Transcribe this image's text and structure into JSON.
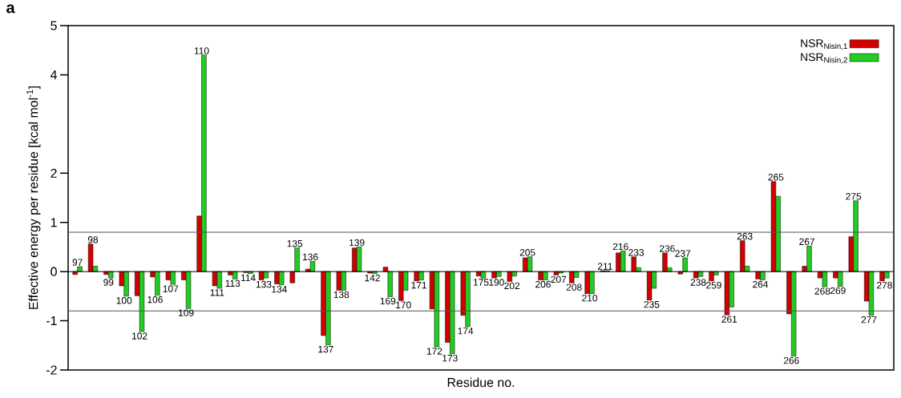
{
  "chart_data": {
    "type": "bar",
    "title": "a",
    "xlabel": "Residue no.",
    "ylabel": "Effective energy per residue [kcal mol$^{-1}$]",
    "categories": [
      "97",
      "98",
      "99",
      "100",
      "102",
      "106",
      "107",
      "109",
      "110",
      "111",
      "113",
      "114",
      "133",
      "134",
      "135",
      "136",
      "137",
      "138",
      "139",
      "142",
      "169",
      "170",
      "171",
      "172",
      "173",
      "174",
      "175",
      "190",
      "202",
      "205",
      "206",
      "207",
      "208",
      "210",
      "211",
      "216",
      "233",
      "235",
      "236",
      "237",
      "238",
      "259",
      "261",
      "263",
      "264",
      "265",
      "266",
      "267",
      "268",
      "269",
      "275",
      "277",
      "278"
    ],
    "series": [
      {
        "name": "NSR$_{Nisin,1}$",
        "color": "#d40000",
        "values": [
          -0.06,
          0.56,
          -0.06,
          -0.29,
          -0.49,
          -0.11,
          -0.17,
          -0.17,
          1.13,
          -0.29,
          -0.07,
          -0.02,
          -0.17,
          -0.25,
          -0.23,
          0.05,
          -1.3,
          -0.38,
          0.48,
          -0.03,
          0.09,
          -0.59,
          -0.19,
          -0.76,
          -1.44,
          -0.89,
          -0.09,
          -0.13,
          -0.2,
          0.28,
          -0.17,
          -0.07,
          -0.23,
          -0.45,
          0.02,
          0.38,
          0.3,
          -0.58,
          0.38,
          -0.05,
          -0.13,
          -0.19,
          -0.88,
          0.63,
          -0.15,
          1.83,
          -0.86,
          0.11,
          -0.13,
          -0.13,
          0.71,
          -0.6,
          -0.19
        ]
      },
      {
        "name": "NSR$_{Nisin,2}$",
        "color": "#22cc22",
        "values": [
          0.1,
          0.11,
          -0.13,
          -0.5,
          -1.22,
          -0.48,
          -0.26,
          -0.75,
          4.4,
          -0.34,
          -0.15,
          -0.04,
          -0.13,
          -0.27,
          0.48,
          0.21,
          -1.49,
          -0.38,
          0.5,
          -0.04,
          -0.51,
          -0.38,
          -0.17,
          -1.53,
          -1.67,
          -1.12,
          -0.13,
          -0.1,
          -0.09,
          0.3,
          -0.17,
          -0.03,
          -0.12,
          -0.45,
          0.02,
          0.42,
          0.08,
          -0.34,
          0.08,
          0.28,
          -0.1,
          -0.07,
          -0.72,
          0.11,
          -0.17,
          1.53,
          -1.72,
          0.52,
          -0.31,
          -0.3,
          1.44,
          -0.89,
          -0.13
        ]
      }
    ],
    "ylim": [
      -2,
      5
    ],
    "yticks": [
      -2,
      -1,
      0,
      1,
      2,
      4,
      5
    ],
    "ref_lines": [
      {
        "axis": "y",
        "value": 0.8,
        "color": "#555555"
      },
      {
        "axis": "y",
        "value": -0.8,
        "color": "#555555"
      }
    ],
    "legend": "top right"
  }
}
